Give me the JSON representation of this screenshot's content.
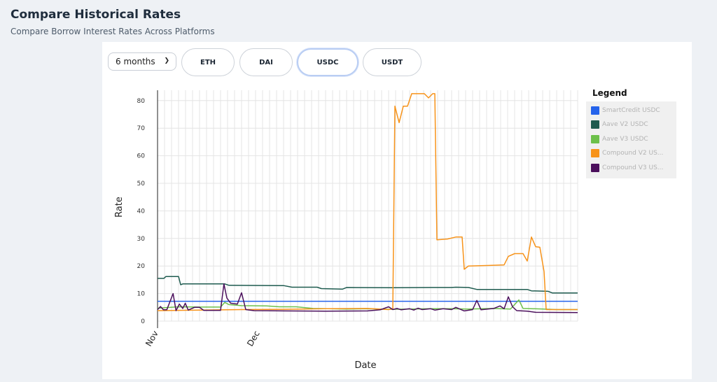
{
  "header": {
    "title": "Compare Historical Rates",
    "subtitle": "Compare Borrow Interest Rates Across Platforms"
  },
  "controls": {
    "period_select": "6 months",
    "tokens": [
      {
        "label": "ETH",
        "active": false
      },
      {
        "label": "DAI",
        "active": false
      },
      {
        "label": "USDC",
        "active": true
      },
      {
        "label": "USDT",
        "active": false
      }
    ]
  },
  "legend": {
    "title": "Legend",
    "items": [
      {
        "label": "SmartCredit USDC",
        "color": "#2563eb"
      },
      {
        "label": "Aave V2 USDC",
        "color": "#1e5b4f"
      },
      {
        "label": "Aave V3 USDC",
        "color": "#6cc04a"
      },
      {
        "label": "Compound V2 US...",
        "color": "#f7931a"
      },
      {
        "label": "Compound V3 US...",
        "color": "#4b0f5c"
      }
    ]
  },
  "chart_data": {
    "type": "line",
    "title": "",
    "xlabel": "Date",
    "ylabel": "Rate",
    "ylim": [
      0,
      82
    ],
    "yticks": [
      0,
      10,
      20,
      30,
      40,
      50,
      60,
      70,
      80
    ],
    "xtick_labels": [
      "Nov",
      "Dec"
    ],
    "grid": true,
    "legend_position": "right",
    "series": [
      {
        "name": "SmartCredit USDC",
        "color": "#2563eb",
        "points": [
          [
            0,
            7.2
          ],
          [
            100,
            7.2
          ]
        ]
      },
      {
        "name": "Aave V2 USDC",
        "color": "#1e5b4f",
        "points": [
          [
            0,
            15.5
          ],
          [
            1.5,
            15.5
          ],
          [
            2,
            16.2
          ],
          [
            5,
            16.2
          ],
          [
            5.5,
            13.2
          ],
          [
            6,
            13.5
          ],
          [
            16,
            13.5
          ],
          [
            17,
            13
          ],
          [
            30,
            12.9
          ],
          [
            32,
            12.3
          ],
          [
            33,
            12.3
          ],
          [
            38,
            12.3
          ],
          [
            39,
            11.8
          ],
          [
            44,
            11.6
          ],
          [
            45,
            12.2
          ],
          [
            56,
            12.1
          ],
          [
            65,
            12.2
          ],
          [
            70,
            12.2
          ],
          [
            71,
            12.3
          ],
          [
            74,
            12.2
          ],
          [
            76,
            11.5
          ],
          [
            86,
            11.5
          ],
          [
            88,
            11.5
          ],
          [
            89,
            11
          ],
          [
            93,
            10.8
          ],
          [
            94,
            10.2
          ],
          [
            100,
            10.2
          ]
        ]
      },
      {
        "name": "Aave V3 USDC",
        "color": "#6cc04a",
        "points": [
          [
            0,
            4.7
          ],
          [
            5,
            5.2
          ],
          [
            10,
            5.1
          ],
          [
            15,
            5.1
          ],
          [
            16,
            6.8
          ],
          [
            17,
            6
          ],
          [
            20,
            5.6
          ],
          [
            26,
            5.5
          ],
          [
            29,
            5.2
          ],
          [
            33,
            5.2
          ],
          [
            37,
            4.6
          ],
          [
            45,
            4.4
          ],
          [
            50,
            4.5
          ],
          [
            55,
            4.3
          ],
          [
            60,
            4.4
          ],
          [
            65,
            4.5
          ],
          [
            70,
            4.5
          ],
          [
            74,
            4.4
          ],
          [
            80,
            4.6
          ],
          [
            84,
            4.4
          ],
          [
            86,
            7.7
          ],
          [
            87,
            4.6
          ],
          [
            92,
            4.4
          ],
          [
            95,
            4.2
          ],
          [
            100,
            4.2
          ]
        ]
      },
      {
        "name": "Compound V2 USDC",
        "color": "#f7931a",
        "points": [
          [
            0,
            3.8
          ],
          [
            20,
            4.2
          ],
          [
            30,
            4.3
          ],
          [
            40,
            4.5
          ],
          [
            50,
            4.6
          ],
          [
            55,
            4.2
          ],
          [
            56,
            4.5
          ],
          [
            56.5,
            78
          ],
          [
            57.5,
            72
          ],
          [
            58.5,
            78
          ],
          [
            59.5,
            78
          ],
          [
            60.5,
            83.5
          ],
          [
            61.5,
            83.5
          ],
          [
            62.5,
            82.5
          ],
          [
            63.5,
            82.5
          ],
          [
            64.5,
            81
          ],
          [
            65.5,
            82.8
          ],
          [
            66,
            83
          ],
          [
            66.5,
            29.5
          ],
          [
            69,
            29.8
          ],
          [
            71,
            30.5
          ],
          [
            72.5,
            30.5
          ],
          [
            73,
            18.8
          ],
          [
            74,
            20
          ],
          [
            79,
            20.2
          ],
          [
            82.5,
            20.4
          ],
          [
            83.5,
            23.5
          ],
          [
            85,
            24.5
          ],
          [
            87,
            24.5
          ],
          [
            88,
            21.8
          ],
          [
            89,
            30.5
          ],
          [
            90,
            27
          ],
          [
            91,
            26.8
          ],
          [
            92,
            18
          ],
          [
            92.5,
            4.2
          ],
          [
            100,
            4.2
          ]
        ]
      },
      {
        "name": "Compound V3 USDC",
        "color": "#4b0f5c",
        "points": [
          [
            0,
            4.2
          ],
          [
            0.7,
            5.3
          ],
          [
            1.4,
            4.1
          ],
          [
            2.2,
            4.1
          ],
          [
            3.7,
            10
          ],
          [
            4.4,
            3.8
          ],
          [
            5.2,
            6.2
          ],
          [
            6,
            4.6
          ],
          [
            6.6,
            6.5
          ],
          [
            7.3,
            4
          ],
          [
            8.8,
            5
          ],
          [
            10,
            5
          ],
          [
            11,
            3.9
          ],
          [
            15,
            3.9
          ],
          [
            15.8,
            13.5
          ],
          [
            16.5,
            8.4
          ],
          [
            17.4,
            6.5
          ],
          [
            19,
            6.2
          ],
          [
            20,
            10.3
          ],
          [
            21,
            4.2
          ],
          [
            23,
            3.8
          ],
          [
            30,
            3.7
          ],
          [
            40,
            3.6
          ],
          [
            50,
            3.7
          ],
          [
            53,
            4.1
          ],
          [
            55,
            5.2
          ],
          [
            56,
            4.2
          ],
          [
            57,
            4.6
          ],
          [
            58,
            4.1
          ],
          [
            60,
            4.5
          ],
          [
            61,
            4
          ],
          [
            62,
            4.7
          ],
          [
            63,
            4.2
          ],
          [
            65,
            4.5
          ],
          [
            66,
            4
          ],
          [
            68,
            4.5
          ],
          [
            70,
            4.2
          ],
          [
            71,
            5
          ],
          [
            73,
            3.7
          ],
          [
            75,
            4.2
          ],
          [
            76,
            7.5
          ],
          [
            77,
            4.1
          ],
          [
            80,
            4.6
          ],
          [
            81.5,
            5.5
          ],
          [
            82.5,
            4.5
          ],
          [
            83.5,
            8.8
          ],
          [
            84.5,
            5.2
          ],
          [
            85.5,
            3.8
          ],
          [
            88,
            3.6
          ],
          [
            90,
            3.2
          ],
          [
            100,
            3.1
          ]
        ]
      }
    ]
  }
}
